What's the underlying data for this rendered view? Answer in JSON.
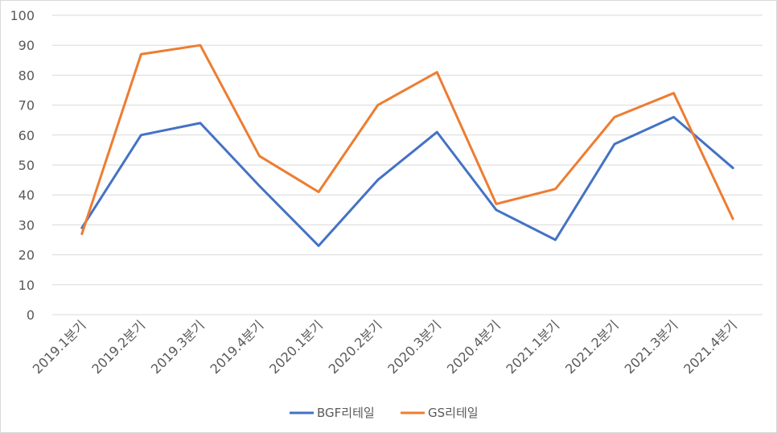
{
  "chart_data": {
    "type": "line",
    "categories": [
      "2019.1분기",
      "2019.2분기",
      "2019.3분기",
      "2019.4분기",
      "2020.1분기",
      "2020.2분기",
      "2020.3분기",
      "2020.4분기",
      "2021.1분기",
      "2021.2분기",
      "2021.3분기",
      "2021.4분기"
    ],
    "series": [
      {
        "name": "BGF리테일",
        "color": "#4472c4",
        "values": [
          29,
          60,
          64,
          43,
          23,
          45,
          61,
          35,
          25,
          57,
          66,
          49
        ]
      },
      {
        "name": "GS리테일",
        "color": "#ed7d31",
        "values": [
          27,
          87,
          90,
          53,
          41,
          70,
          81,
          37,
          42,
          66,
          74,
          32
        ]
      }
    ],
    "title": "",
    "xlabel": "",
    "ylabel": "",
    "ylim": [
      0,
      100
    ],
    "yticks": [
      "0",
      "10",
      "20",
      "30",
      "40",
      "50",
      "60",
      "70",
      "80",
      "90",
      "100"
    ],
    "grid": true,
    "legend_position": "bottom"
  }
}
